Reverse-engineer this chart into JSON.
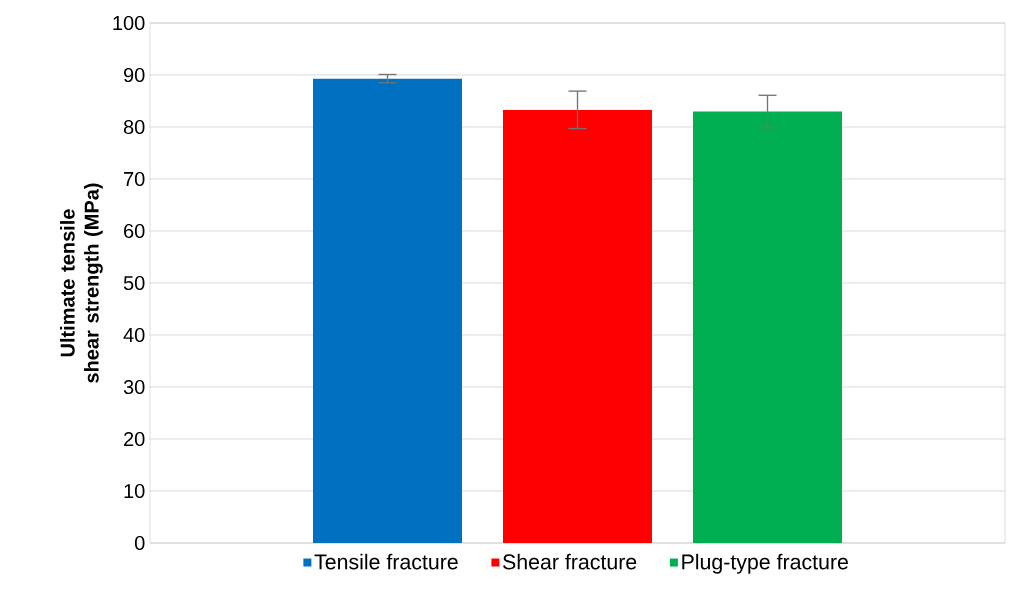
{
  "chart_data": {
    "type": "bar",
    "ylabel": "Ultimate tensile shear strength (MPa)",
    "categories": [
      null
    ],
    "series": [
      {
        "name": "Tensile fracture",
        "color": "#0070c0",
        "values": [
          89.3
        ],
        "errors": [
          0.8
        ]
      },
      {
        "name": "Shear fracture",
        "color": "#ff0000",
        "values": [
          83.3
        ],
        "errors": [
          3.6
        ]
      },
      {
        "name": "Plug-type fracture",
        "color": "#00b050",
        "values": [
          83.0
        ],
        "errors": [
          3.1
        ]
      }
    ],
    "ylim": [
      0,
      100
    ],
    "yticks": [
      0,
      10,
      20,
      30,
      40,
      50,
      60,
      70,
      80,
      90,
      100
    ],
    "grid": "y",
    "legend": "bottom",
    "tick_labels": "y"
  }
}
